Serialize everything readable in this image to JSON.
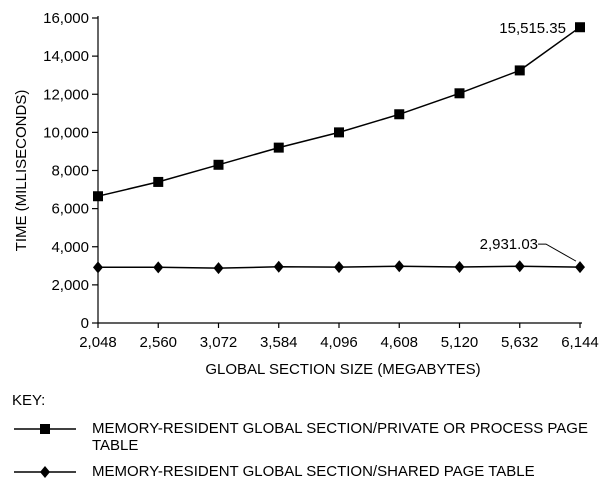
{
  "chart_data": {
    "type": "line",
    "title": "",
    "xlabel": "GLOBAL SECTION SIZE (MEGABYTES)",
    "ylabel": "TIME (MILLISECONDS)",
    "x": [
      2048,
      2560,
      3072,
      3584,
      4096,
      4608,
      5120,
      5632,
      6144
    ],
    "x_tick_labels": [
      "2,048",
      "2,560",
      "3,072",
      "3,584",
      "4,096",
      "4,608",
      "5,120",
      "5,632",
      "6,144"
    ],
    "ylim": [
      0,
      16000
    ],
    "y_ticks": [
      0,
      2000,
      4000,
      6000,
      8000,
      10000,
      12000,
      14000,
      16000
    ],
    "y_tick_labels": [
      "0",
      "2,000",
      "4,000",
      "6,000",
      "8,000",
      "10,000",
      "12,000",
      "14,000",
      "16,000"
    ],
    "grid": false,
    "legend_placement": "bottom",
    "series": [
      {
        "name": "MEMORY-RESIDENT GLOBAL SECTION/PRIVATE OR PROCESS PAGE TABLE",
        "marker": "square",
        "values": [
          6650,
          7400,
          8300,
          9200,
          10000,
          10950,
          12050,
          13250,
          15515.35
        ]
      },
      {
        "name": "MEMORY-RESIDENT GLOBAL SECTION/SHARED PAGE TABLE",
        "marker": "diamond",
        "values": [
          2920,
          2920,
          2880,
          2950,
          2930,
          2980,
          2940,
          2980,
          2931.03
        ]
      }
    ],
    "annotations": [
      {
        "series": 0,
        "point": 8,
        "text": "15,515.35"
      },
      {
        "series": 1,
        "point": 8,
        "text": "2,931.03"
      }
    ]
  },
  "key": {
    "title": "KEY:",
    "items": [
      {
        "marker": "square",
        "label": "MEMORY-RESIDENT GLOBAL SECTION/PRIVATE OR PROCESS PAGE TABLE"
      },
      {
        "marker": "diamond",
        "label": "MEMORY-RESIDENT GLOBAL SECTION/SHARED PAGE TABLE"
      }
    ]
  },
  "colors": {
    "ink": "#000000",
    "background": "#ffffff"
  }
}
